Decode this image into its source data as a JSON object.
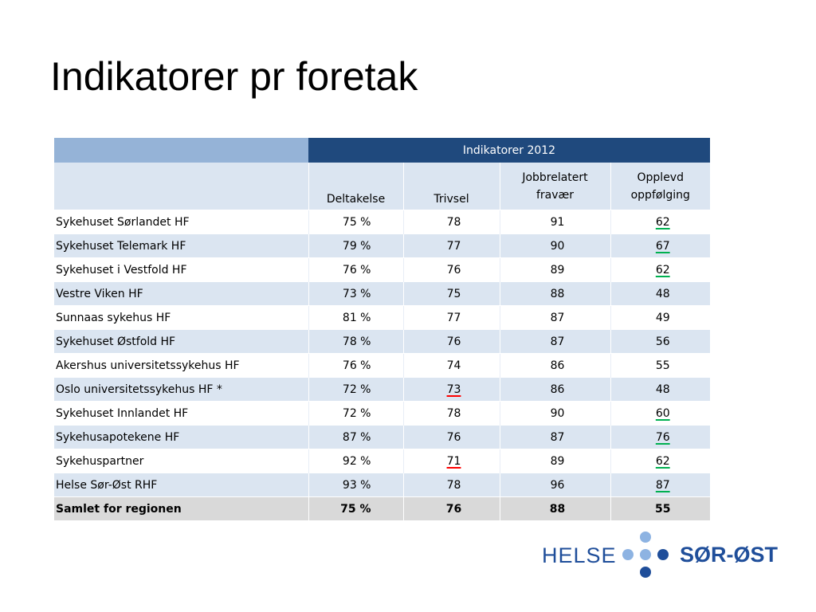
{
  "title": "Indikatorer pr foretak",
  "table": {
    "group_header": "Indikatorer 2012",
    "columns": [
      "Deltakelse",
      "Trivsel",
      "Jobbrelatert fravær",
      "Opplevd oppfølging"
    ],
    "columns_lines": [
      [
        "Deltakelse"
      ],
      [
        "Trivsel"
      ],
      [
        "Jobbrelatert",
        "fravær"
      ],
      [
        "Opplevd",
        "oppfølging"
      ]
    ],
    "rows": [
      {
        "name": "Sykehuset Sørlandet HF",
        "deltakelse": "75 %",
        "trivsel": "78",
        "fravaer": "91",
        "oppfolging": "62",
        "trivsel_mark": "",
        "oppfolging_mark": "good"
      },
      {
        "name": "Sykehuset Telemark HF",
        "deltakelse": "79 %",
        "trivsel": "77",
        "fravaer": "90",
        "oppfolging": "67",
        "trivsel_mark": "",
        "oppfolging_mark": "good"
      },
      {
        "name": "Sykehuset i Vestfold HF",
        "deltakelse": "76 %",
        "trivsel": "76",
        "fravaer": "89",
        "oppfolging": "62",
        "trivsel_mark": "",
        "oppfolging_mark": "good"
      },
      {
        "name": "Vestre Viken HF",
        "deltakelse": "73 %",
        "trivsel": "75",
        "fravaer": "88",
        "oppfolging": "48",
        "trivsel_mark": "",
        "oppfolging_mark": ""
      },
      {
        "name": "Sunnaas sykehus HF",
        "deltakelse": "81 %",
        "trivsel": "77",
        "fravaer": "87",
        "oppfolging": "49",
        "trivsel_mark": "",
        "oppfolging_mark": ""
      },
      {
        "name": "Sykehuset Østfold HF",
        "deltakelse": "78 %",
        "trivsel": "76",
        "fravaer": "87",
        "oppfolging": "56",
        "trivsel_mark": "",
        "oppfolging_mark": ""
      },
      {
        "name": "Akershus universitetssykehus HF",
        "deltakelse": "76 %",
        "trivsel": "74",
        "fravaer": "86",
        "oppfolging": "55",
        "trivsel_mark": "",
        "oppfolging_mark": ""
      },
      {
        "name": "Oslo universitetssykehus HF *",
        "deltakelse": "72 %",
        "trivsel": "73",
        "fravaer": "86",
        "oppfolging": "48",
        "trivsel_mark": "bad",
        "oppfolging_mark": ""
      },
      {
        "name": "Sykehuset Innlandet HF",
        "deltakelse": "72 %",
        "trivsel": "78",
        "fravaer": "90",
        "oppfolging": "60",
        "trivsel_mark": "",
        "oppfolging_mark": "good"
      },
      {
        "name": "Sykehusapotekene HF",
        "deltakelse": "87 %",
        "trivsel": "76",
        "fravaer": "87",
        "oppfolging": "76",
        "trivsel_mark": "",
        "oppfolging_mark": "good"
      },
      {
        "name": "Sykehuspartner",
        "deltakelse": "92 %",
        "trivsel": "71",
        "fravaer": "89",
        "oppfolging": "62",
        "trivsel_mark": "bad",
        "oppfolging_mark": "good"
      },
      {
        "name": "Helse Sør-Øst RHF",
        "deltakelse": "93 %",
        "trivsel": "78",
        "fravaer": "96",
        "oppfolging": "87",
        "trivsel_mark": "",
        "oppfolging_mark": "good"
      }
    ],
    "total": {
      "name": "Samlet for regionen",
      "deltakelse": "75 %",
      "trivsel": "76",
      "fravaer": "88",
      "oppfolging": "55"
    }
  },
  "colors": {
    "header_dark": "#1f497d",
    "header_light": "#95b3d7",
    "band": "#dbe5f1",
    "total": "#d9d9d9",
    "good_mark": "#00b050",
    "bad_mark": "#ff0000",
    "logo_dark": "#1f4e9a",
    "logo_light": "#8db3e2"
  },
  "logo": {
    "left": "HELSE",
    "right": "SØR-ØST"
  }
}
